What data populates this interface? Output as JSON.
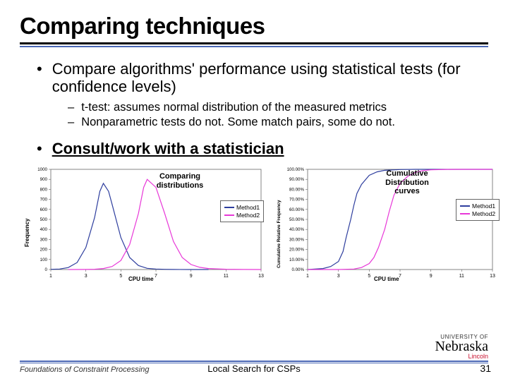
{
  "title": "Comparing techniques",
  "bullets": {
    "b1": "Compare algorithms' performance using statistical tests (for confidence levels)",
    "s1": "t-test: assumes normal distribution of the measured metrics",
    "s2": "Nonparametric tests do not. Some match pairs, some do not.",
    "b2": "Consult/work with a statistician"
  },
  "chart1": {
    "type": "line",
    "title": "Comparing distributions",
    "xlabel": "CPU time",
    "ylabel": "Frequency",
    "legend": [
      "Method1",
      "Method2"
    ],
    "colors": [
      "#2e3e9e",
      "#e838d8"
    ],
    "xlim": [
      1,
      13
    ],
    "xticks": [
      1,
      3,
      5,
      7,
      9,
      11,
      13
    ],
    "ylim": [
      0,
      1000
    ],
    "yticks": [
      0,
      100,
      200,
      300,
      400,
      500,
      600,
      700,
      800,
      900,
      1000
    ],
    "series1_x": [
      1,
      1.5,
      2,
      2.5,
      3,
      3.5,
      3.8,
      4,
      4.3,
      4.5,
      5,
      5.5,
      6,
      6.5,
      7,
      7.5,
      8,
      9,
      10
    ],
    "series1_y": [
      2,
      5,
      20,
      70,
      220,
      520,
      780,
      860,
      780,
      650,
      320,
      120,
      40,
      12,
      5,
      2,
      1,
      0,
      0
    ],
    "series2_x": [
      2,
      3,
      3.5,
      4,
      4.5,
      5,
      5.5,
      6,
      6.3,
      6.5,
      7,
      7.5,
      8,
      8.5,
      9,
      9.5,
      10,
      11,
      12,
      13
    ],
    "series2_y": [
      0,
      1,
      3,
      10,
      30,
      90,
      250,
      560,
      820,
      900,
      820,
      560,
      280,
      120,
      50,
      22,
      10,
      3,
      1,
      0
    ],
    "background": "#ffffff",
    "grid": false,
    "line_width": 1.2,
    "marker": "none"
  },
  "chart2": {
    "type": "line",
    "title": "Cumulative Distribution curves",
    "xlabel": "CPU time",
    "ylabel": "Cumulative Relative Frequency",
    "legend": [
      "Method1",
      "Method2"
    ],
    "colors": [
      "#2e3e9e",
      "#e838d8"
    ],
    "xlim": [
      1,
      13
    ],
    "xticks": [
      1,
      3,
      5,
      7,
      9,
      11,
      13
    ],
    "ylim": [
      0,
      100
    ],
    "yticks_pct": [
      "0.00%",
      "10.00%",
      "20.00%",
      "30.00%",
      "40.00%",
      "50.00%",
      "60.00%",
      "70.00%",
      "80.00%",
      "90.00%",
      "100.00%"
    ],
    "series1_x": [
      1,
      2,
      2.5,
      3,
      3.3,
      3.5,
      3.8,
      4,
      4.2,
      4.5,
      5,
      5.5,
      6,
      7,
      8,
      10,
      13
    ],
    "series1_y": [
      0,
      1,
      3,
      8,
      18,
      32,
      50,
      64,
      76,
      85,
      94,
      97.5,
      99,
      99.8,
      100,
      100,
      100
    ],
    "series2_x": [
      1,
      3,
      4,
      4.5,
      5,
      5.3,
      5.6,
      6,
      6.3,
      6.6,
      7,
      7.5,
      8,
      8.5,
      9,
      10,
      11,
      13
    ],
    "series2_y": [
      0,
      0,
      0.5,
      2,
      6,
      12,
      22,
      40,
      58,
      74,
      86,
      93,
      97,
      98.8,
      99.5,
      99.9,
      100,
      100
    ],
    "background": "#ffffff",
    "grid": false,
    "line_width": 1.2,
    "marker": "none"
  },
  "footer": {
    "left": "Foundations of Constraint Processing",
    "center": "Local Search for CSPs",
    "page": "31"
  },
  "logo": {
    "uni": "UNIVERSITY OF",
    "name": "Nebraska",
    "city": "Lincoln",
    "color": "#c8102e"
  }
}
